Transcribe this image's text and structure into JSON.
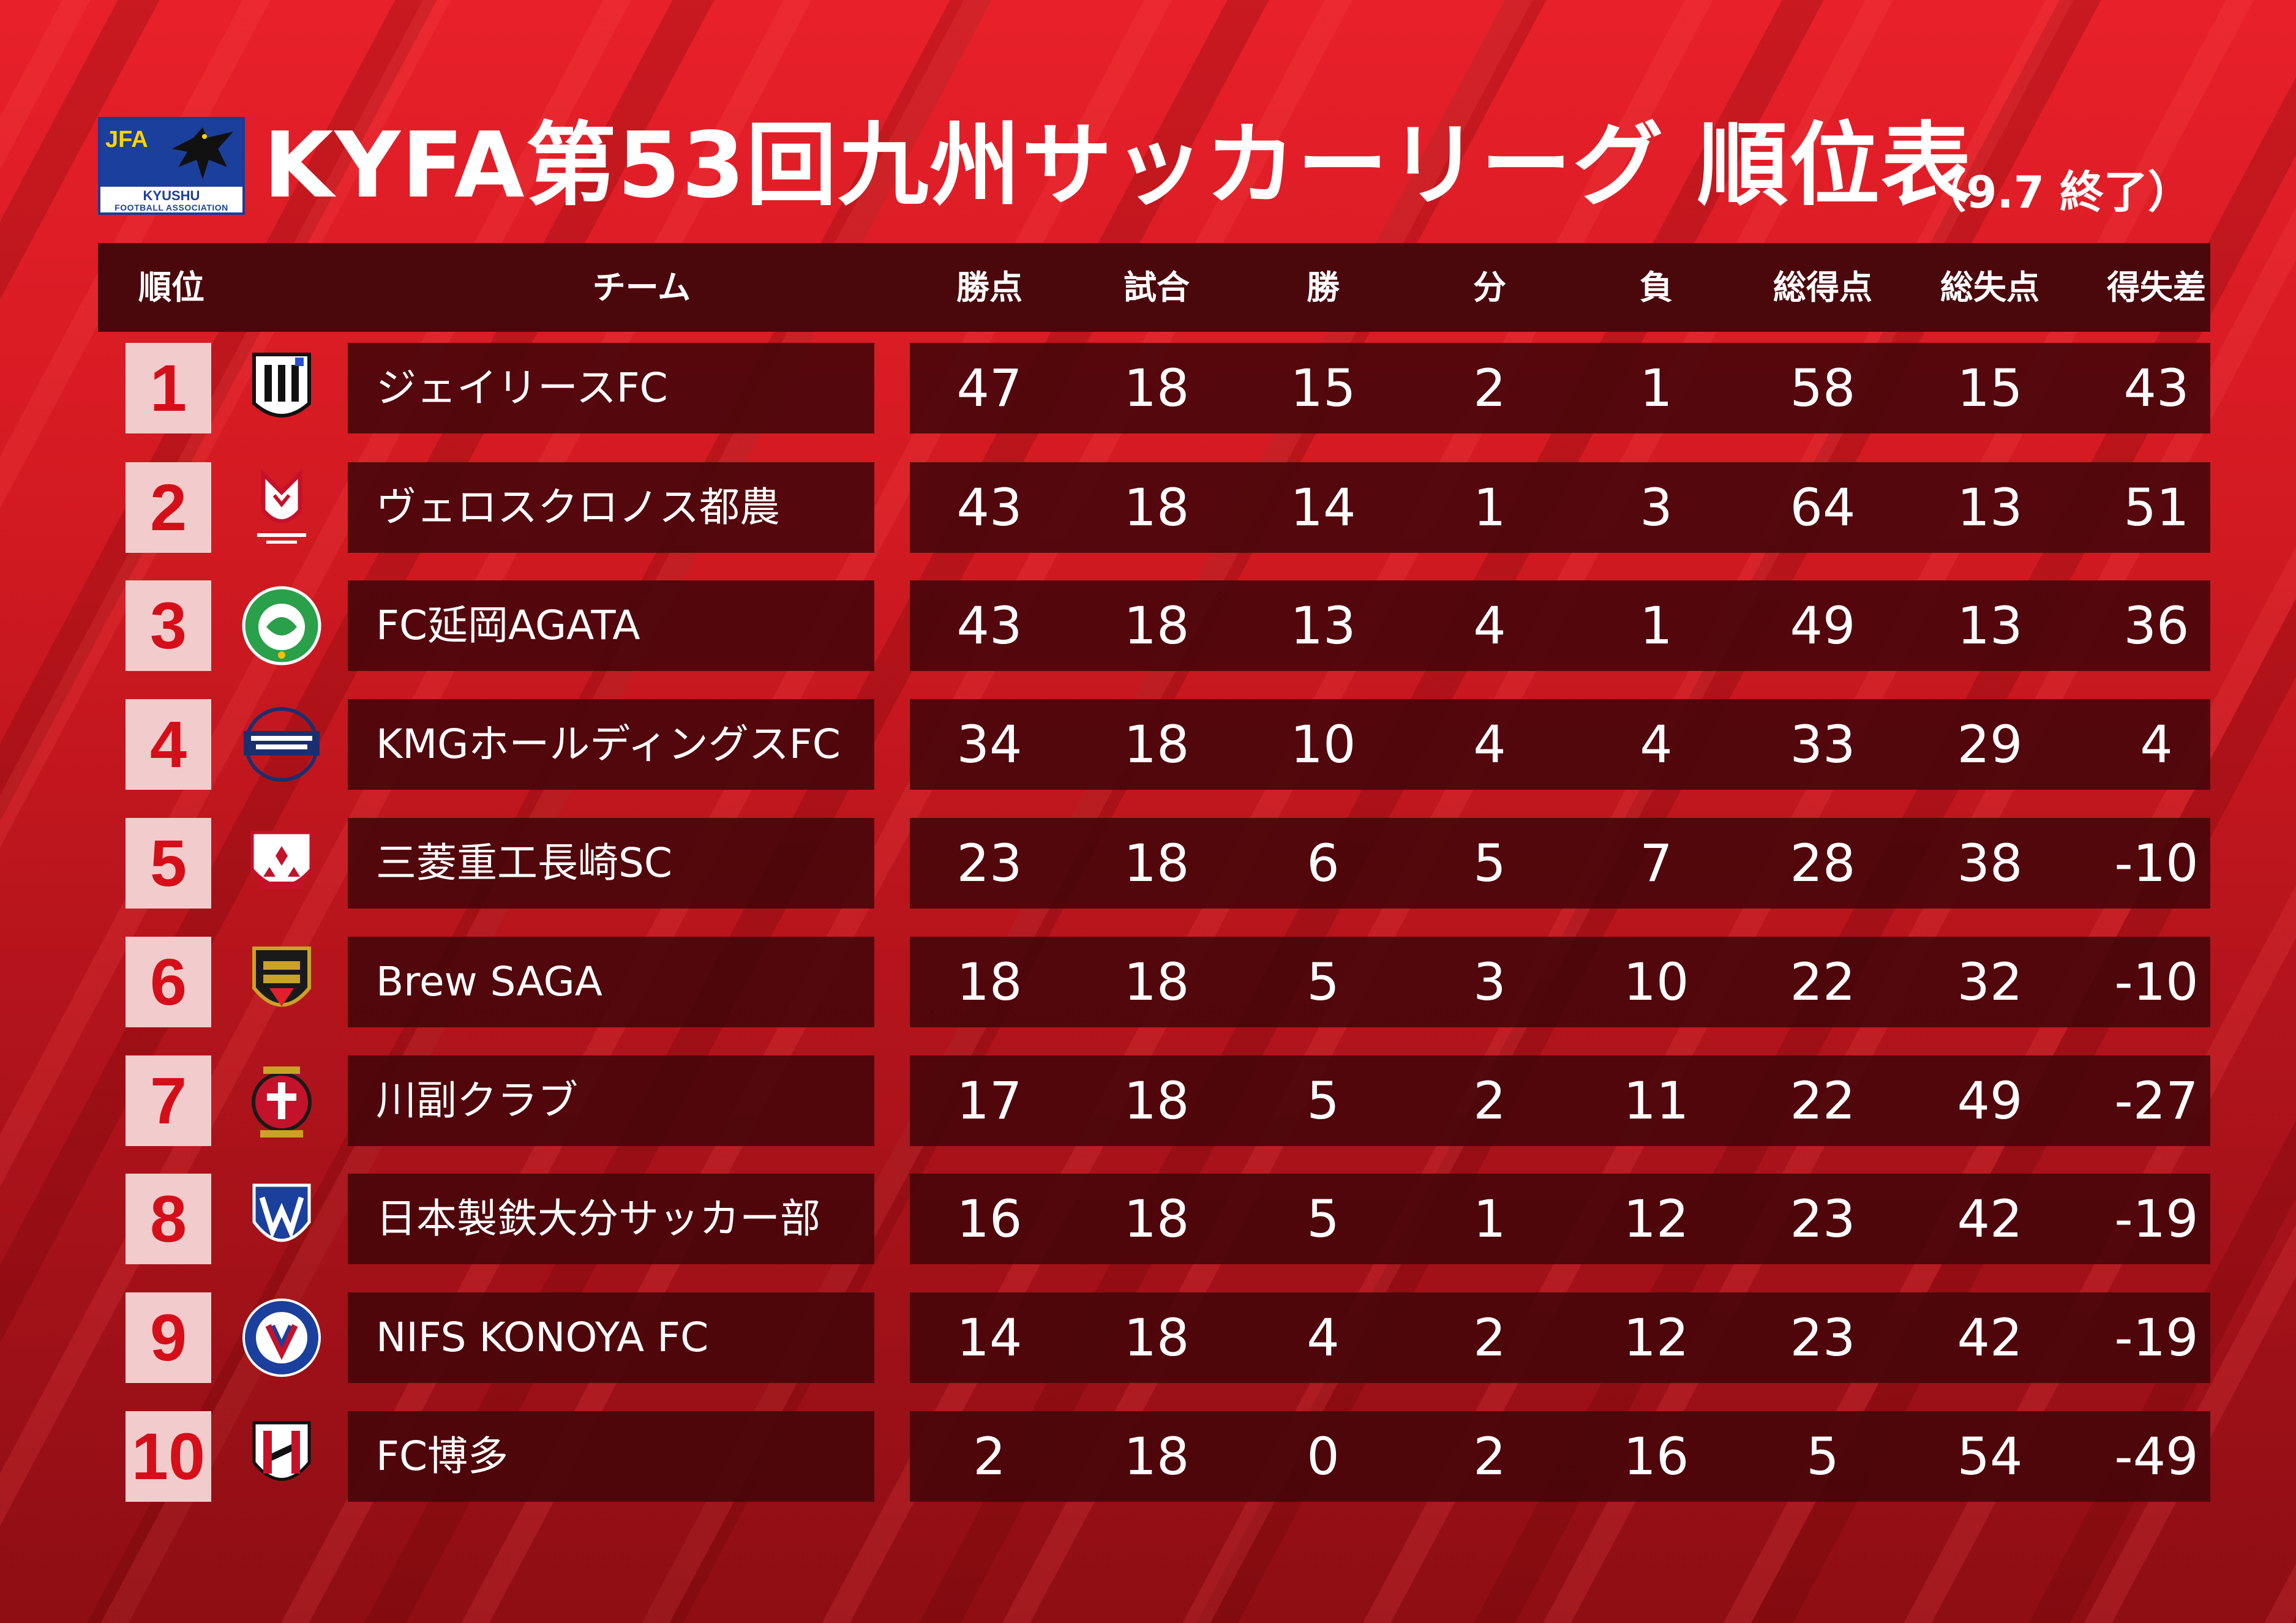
{
  "header": {
    "logo": {
      "abbr": "JFA",
      "region": "KYUSHU",
      "association": "FOOTBALL ASSOCIATION"
    },
    "title": "KYFA第53回九州サッカーリーグ 順位表",
    "status": "（9.7 終了）"
  },
  "columns": {
    "rank": "順位",
    "team": "チーム",
    "points": "勝点",
    "played": "試合",
    "won": "勝",
    "drawn": "分",
    "lost": "負",
    "gf": "総得点",
    "ga": "総失点",
    "gd": "得失差"
  },
  "colors": {
    "rank_text": "#d40f1a",
    "rank_bg": "#f2cccc",
    "row_bg": "#46060a",
    "header_bg": "#4a080c"
  },
  "rows": [
    {
      "rank": "1",
      "emblem": "jeilies-emblem",
      "team": "ジェイリースFC",
      "points": "47",
      "played": "18",
      "won": "15",
      "drawn": "2",
      "lost": "1",
      "gf": "58",
      "ga": "15",
      "gd": "43"
    },
    {
      "rank": "2",
      "emblem": "veroskronos-emblem",
      "team": "ヴェロスクロノス都農",
      "points": "43",
      "played": "18",
      "won": "14",
      "drawn": "1",
      "lost": "3",
      "gf": "64",
      "ga": "13",
      "gd": "51"
    },
    {
      "rank": "3",
      "emblem": "agata-emblem",
      "team": "FC延岡AGATA",
      "points": "43",
      "played": "18",
      "won": "13",
      "drawn": "4",
      "lost": "1",
      "gf": "49",
      "ga": "13",
      "gd": "36"
    },
    {
      "rank": "4",
      "emblem": "kmg-emblem",
      "team": "KMGホールディングスFC",
      "points": "34",
      "played": "18",
      "won": "10",
      "drawn": "4",
      "lost": "4",
      "gf": "33",
      "ga": "29",
      "gd": "4"
    },
    {
      "rank": "5",
      "emblem": "mitsubishi-emblem",
      "team": "三菱重工長崎SC",
      "points": "23",
      "played": "18",
      "won": "6",
      "drawn": "5",
      "lost": "7",
      "gf": "28",
      "ga": "38",
      "gd": "-10"
    },
    {
      "rank": "6",
      "emblem": "brew-saga-emblem",
      "team": "Brew SAGA",
      "points": "18",
      "played": "18",
      "won": "5",
      "drawn": "3",
      "lost": "10",
      "gf": "22",
      "ga": "32",
      "gd": "-10"
    },
    {
      "rank": "7",
      "emblem": "kawasoe-emblem",
      "team": "川副クラブ",
      "points": "17",
      "played": "18",
      "won": "5",
      "drawn": "2",
      "lost": "11",
      "gf": "22",
      "ga": "49",
      "gd": "-27"
    },
    {
      "rank": "8",
      "emblem": "nippon-steel-oita-emblem",
      "team": "日本製鉄大分サッカー部",
      "points": "16",
      "played": "18",
      "won": "5",
      "drawn": "1",
      "lost": "12",
      "gf": "23",
      "ga": "42",
      "gd": "-19"
    },
    {
      "rank": "9",
      "emblem": "nifs-kanoya-emblem",
      "team": "NIFS KONOYA FC",
      "points": "14",
      "played": "18",
      "won": "4",
      "drawn": "2",
      "lost": "12",
      "gf": "23",
      "ga": "42",
      "gd": "-19"
    },
    {
      "rank": "10",
      "emblem": "fc-hakata-emblem",
      "team": "FC博多",
      "points": "2",
      "played": "18",
      "won": "0",
      "drawn": "2",
      "lost": "16",
      "gf": "5",
      "ga": "54",
      "gd": "-49"
    }
  ]
}
